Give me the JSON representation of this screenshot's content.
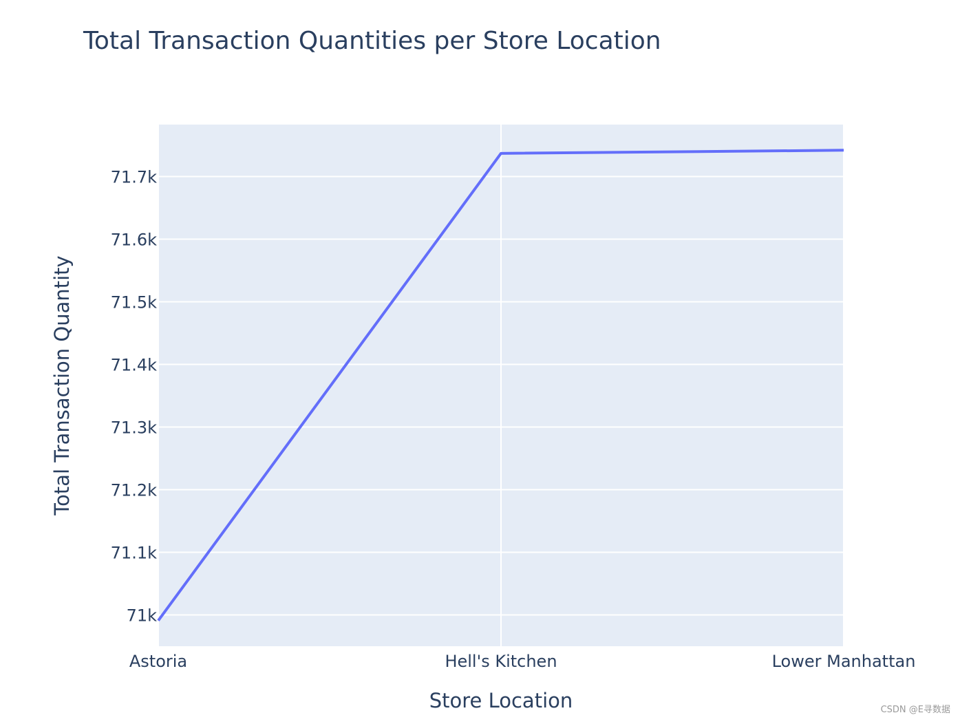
{
  "chart_data": {
    "type": "line",
    "title": "Total Transaction Quantities per Store Location",
    "xlabel": "Store Location",
    "ylabel": "Total Transaction Quantity",
    "categories": [
      "Astoria",
      "Hell's Kitchen",
      "Lower Manhattan"
    ],
    "series": [
      {
        "values": [
          70991,
          71737,
          71742
        ]
      }
    ],
    "ylim": [
      70950,
      71783
    ],
    "y_ticks": [
      {
        "value": 71000,
        "label": "71k"
      },
      {
        "value": 71100,
        "label": "71.1k"
      },
      {
        "value": 71200,
        "label": "71.2k"
      },
      {
        "value": 71300,
        "label": "71.3k"
      },
      {
        "value": 71400,
        "label": "71.4k"
      },
      {
        "value": 71500,
        "label": "71.5k"
      },
      {
        "value": 71600,
        "label": "71.6k"
      },
      {
        "value": 71700,
        "label": "71.7k"
      }
    ],
    "grid": true,
    "legend": "none",
    "colors": {
      "line": "#636efa",
      "plot_background": "#e5ecf6",
      "grid": "#ffffff",
      "text": "#2a3f5f"
    }
  },
  "watermark": "CSDN @E寻数据"
}
